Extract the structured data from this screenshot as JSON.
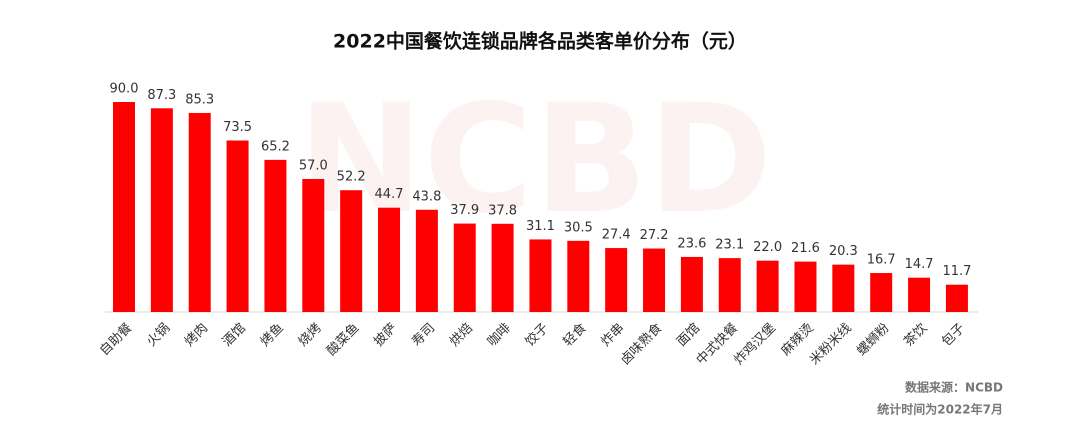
{
  "chart_data": {
    "type": "bar",
    "title": "2022中国餐饮连锁品牌各品类客单价分布（元）",
    "categories": [
      "自助餐",
      "火锅",
      "烤肉",
      "酒馆",
      "烤鱼",
      "烧烤",
      "酸菜鱼",
      "披萨",
      "寿司",
      "烘焙",
      "咖啡",
      "饺子",
      "轻食",
      "炸串",
      "卤味熟食",
      "面馆",
      "中式快餐",
      "炸鸡汉堡",
      "麻辣烫",
      "米粉米线",
      "螺蛳粉",
      "茶饮",
      "包子"
    ],
    "values": [
      90.0,
      87.3,
      85.3,
      73.5,
      65.2,
      57.0,
      52.2,
      44.7,
      43.8,
      37.9,
      37.8,
      31.1,
      30.5,
      27.4,
      27.2,
      23.6,
      23.1,
      22.0,
      21.6,
      20.3,
      16.7,
      14.7,
      11.7
    ],
    "value_labels": [
      "90.0",
      "87.3",
      "85.3",
      "73.5",
      "65.2",
      "57.0",
      "52.2",
      "44.7",
      "43.8",
      "37.9",
      "37.8",
      "31.1",
      "30.5",
      "27.4",
      "27.2",
      "23.6",
      "23.1",
      "22.0",
      "21.6",
      "20.3",
      "16.7",
      "14.7",
      "11.7"
    ],
    "color": "#ff0000",
    "watermark": "NCBD",
    "source": "数据来源：NCBD",
    "date_note": "统计时间为2022年7月"
  }
}
